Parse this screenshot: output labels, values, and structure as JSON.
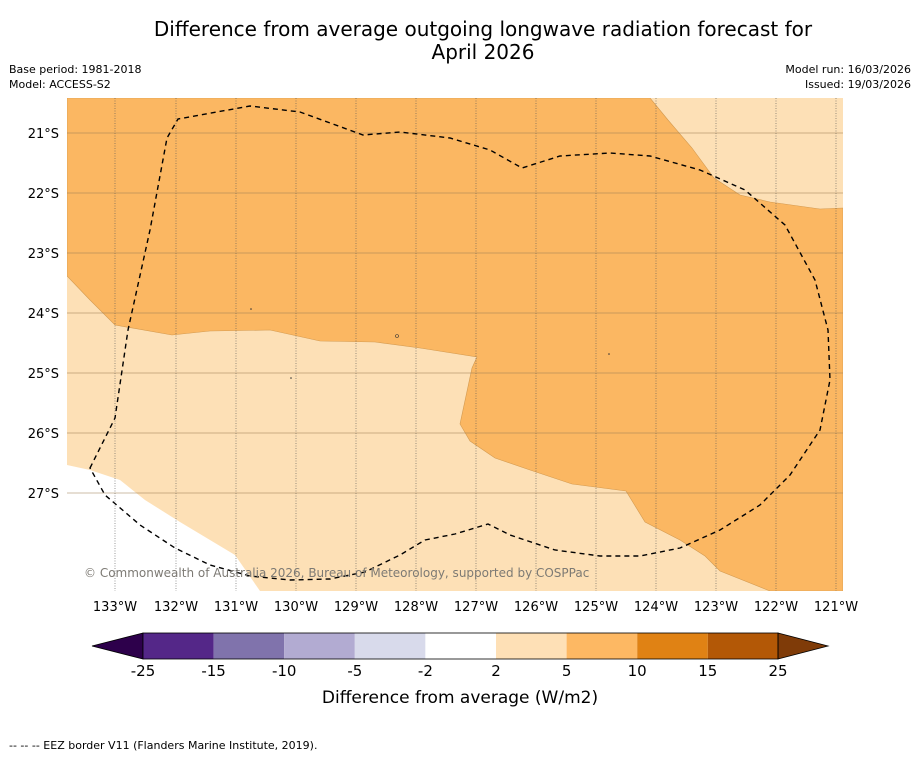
{
  "title_line1": "Difference from average outgoing longwave radiation forecast for",
  "title_line2": "April 2026",
  "base_period": "Base period: 1981-2018",
  "model": "Model: ACCESS-S2",
  "model_run": "Model run: 16/03/2026",
  "issued": "Issued: 19/03/2026",
  "copyright": "© Commonwealth of Australia 2026, Bureau of Meteorology, supported by COSPPac",
  "map": {
    "lat_labels": [
      "21°S",
      "22°S",
      "23°S",
      "24°S",
      "25°S",
      "26°S",
      "27°S"
    ],
    "lon_labels": [
      "133°W",
      "132°W",
      "131°W",
      "130°W",
      "129°W",
      "128°W",
      "127°W",
      "126°W",
      "125°W",
      "124°W",
      "123°W",
      "122°W",
      "121°W"
    ],
    "lon_range": [
      -133.8,
      -120.9
    ],
    "lat_range": [
      -20.6,
      -28.9
    ],
    "regions": [
      {
        "name": "2 to 5",
        "color": "#fde0b6"
      },
      {
        "name": "5 to 10",
        "color": "#fbb762"
      },
      {
        "name": "-2 to 2",
        "color": "#ffffff"
      }
    ]
  },
  "colorbar": {
    "label": "Difference from average (W/m2)",
    "ticks": [
      "-25",
      "-15",
      "-10",
      "-5",
      "-2",
      "2",
      "5",
      "10",
      "15",
      "25"
    ],
    "colors": [
      "#2d004b",
      "#542788",
      "#8073ac",
      "#b2abd2",
      "#d8daeb",
      "#ffffff",
      "#fee0b6",
      "#fdb863",
      "#e08214",
      "#b35806",
      "#7f3b08"
    ]
  },
  "legend_note": "-- -- -- EEZ border V11 (Flanders Marine Institute, 2019)."
}
